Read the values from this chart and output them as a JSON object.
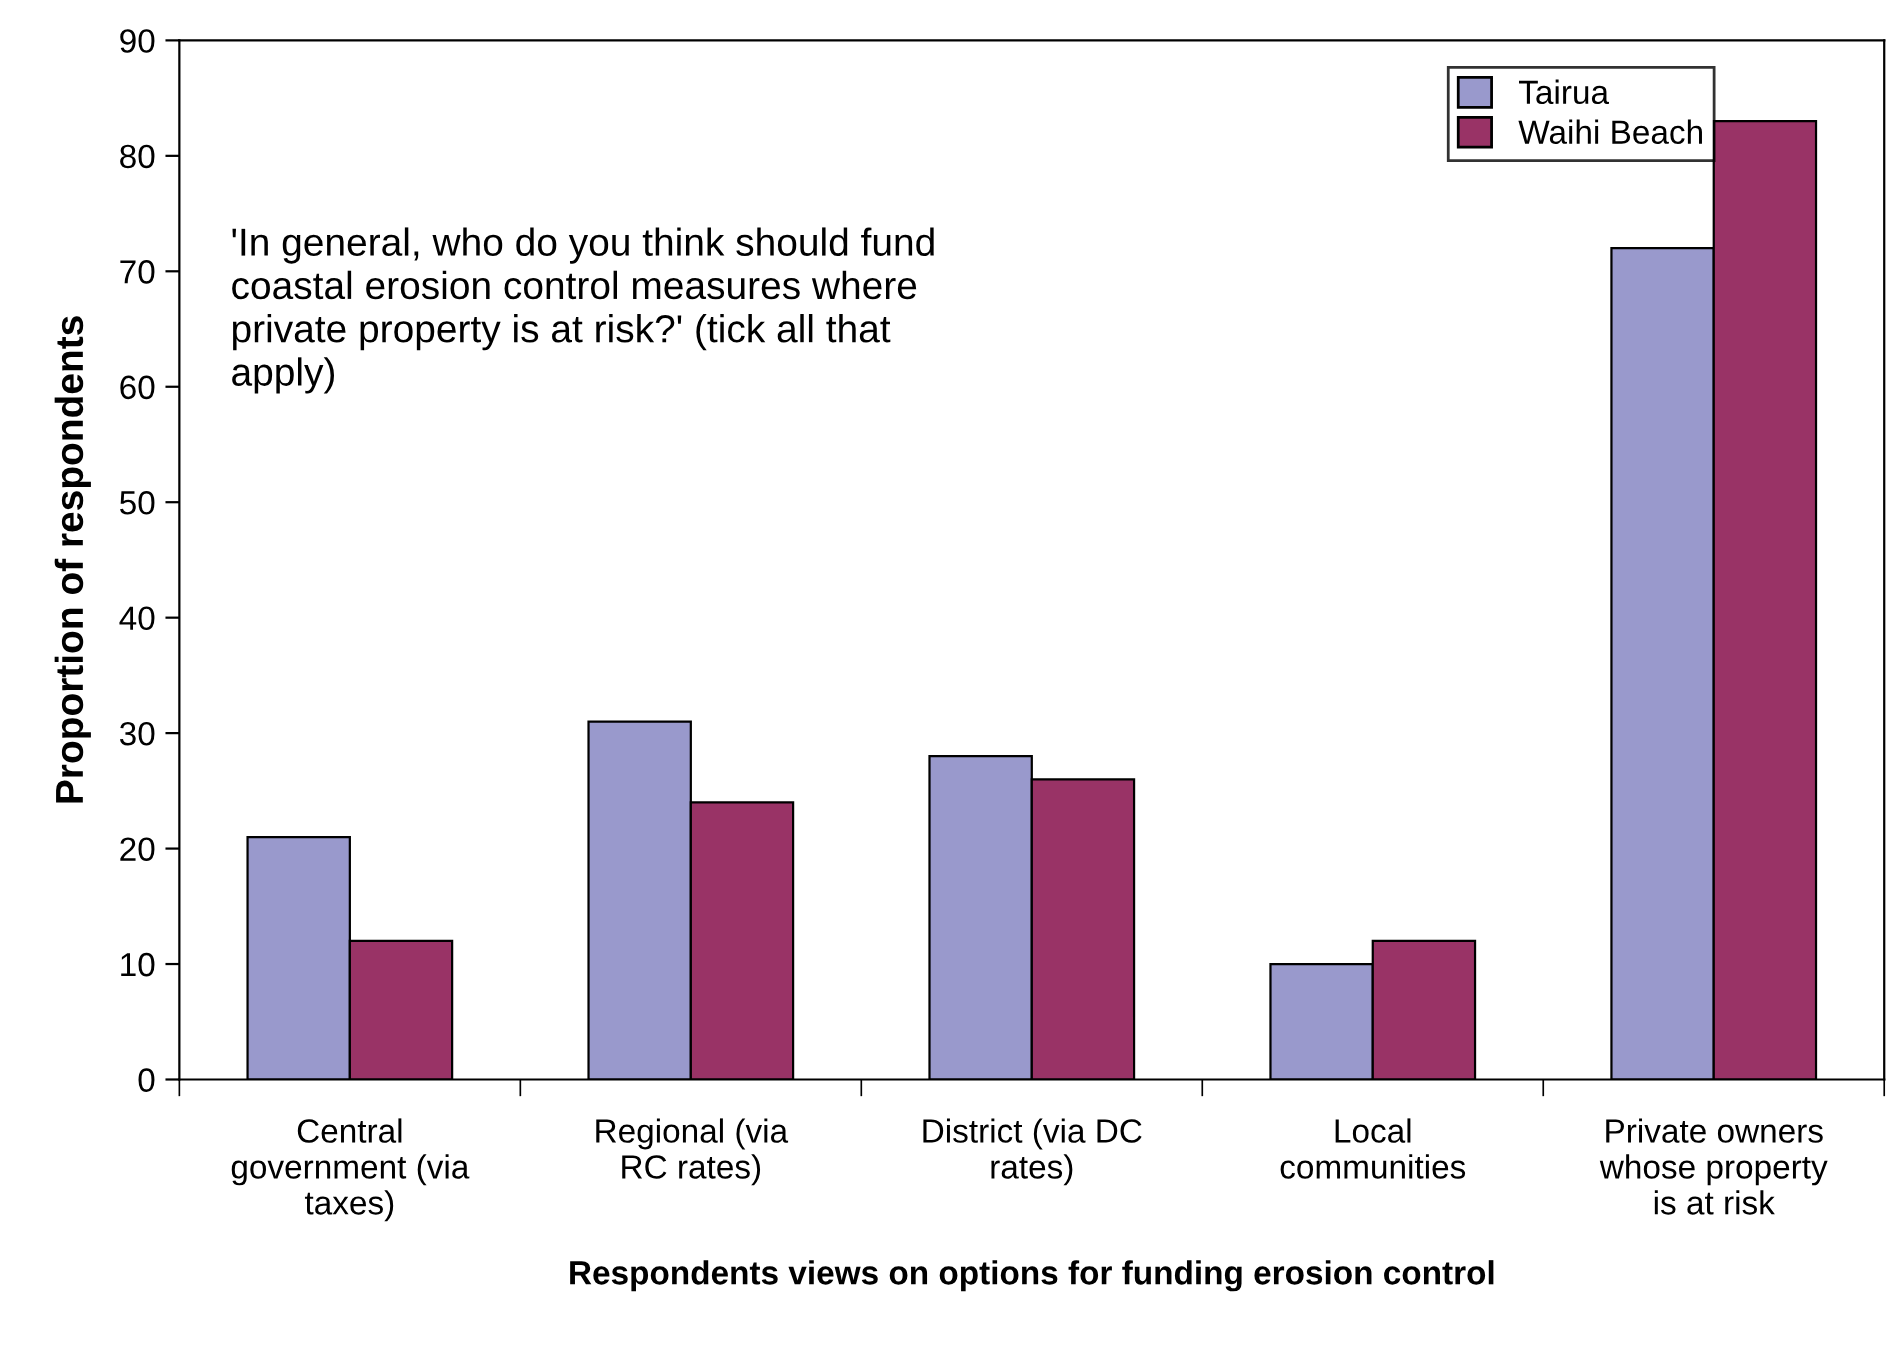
{
  "chart_data": {
    "type": "bar",
    "xlabel": "Respondents views on options for funding erosion control",
    "ylabel": "Proportion of respondents",
    "categories": [
      "Central\ngovernment (via\ntaxes)",
      "Regional (via\nRC rates)",
      "District (via DC\nrates)",
      "Local\ncommunities",
      "Private owners\nwhose property\nis at risk"
    ],
    "series": [
      {
        "name": "Tairua",
        "color": "#9999cc",
        "values": [
          21,
          31,
          28,
          10,
          72
        ]
      },
      {
        "name": "Waihi Beach",
        "color": "#993366",
        "values": [
          12,
          24,
          26,
          12,
          83
        ]
      }
    ],
    "ylim": [
      0,
      90
    ],
    "yticks": [
      0,
      10,
      20,
      30,
      40,
      50,
      60,
      70,
      80,
      90
    ],
    "grid": false,
    "legend": "top right",
    "annotations": [
      "'In general, who do you think should fund\ncoastal erosion control measures where\nprivate property is at risk?' (tick all that\napply)"
    ]
  }
}
